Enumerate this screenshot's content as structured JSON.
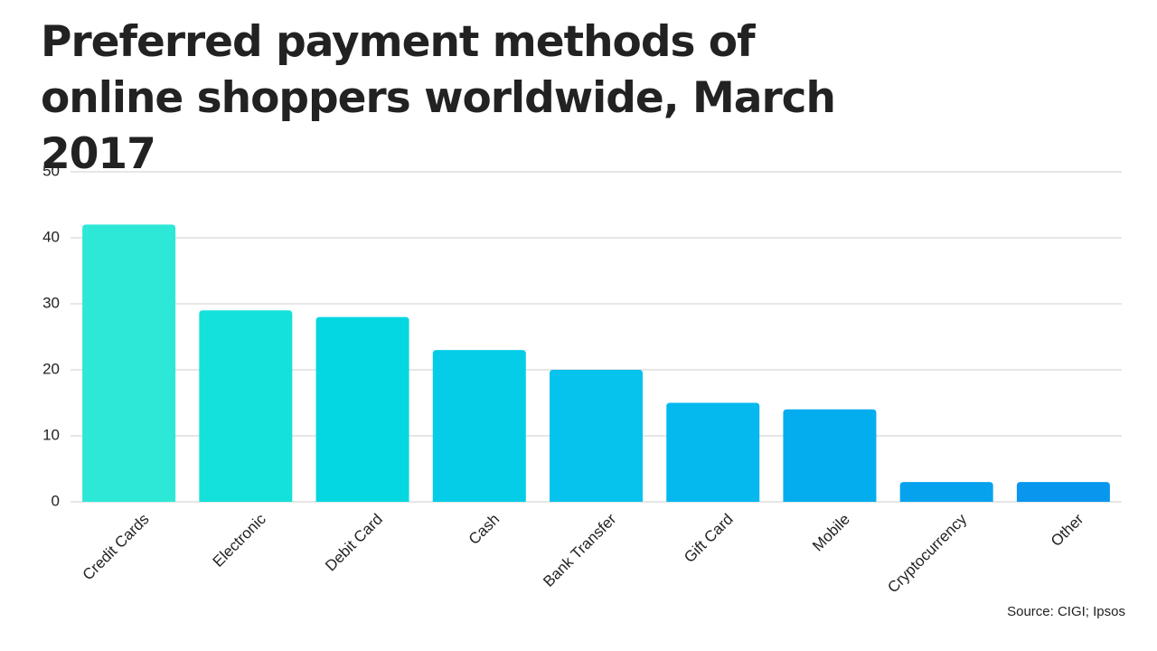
{
  "chart_data": {
    "type": "bar",
    "title": "Preferred payment methods of online shoppers worldwide, March 2017",
    "categories": [
      "Credit Cards",
      "Electronic",
      "Debit Card",
      "Cash",
      "Bank Transfer",
      "Gift Card",
      "Mobile",
      "Cryptocurrency",
      "Other"
    ],
    "values": [
      42,
      29,
      28,
      23,
      20,
      15,
      14,
      3,
      3
    ],
    "colors": [
      "#2de8d6",
      "#14e1d9",
      "#05d7e0",
      "#05cde8",
      "#05c3ec",
      "#05b8ee",
      "#04adee",
      "#07a2ee",
      "#0996ee"
    ],
    "ylim": [
      0,
      50
    ],
    "yticks": [
      0,
      10,
      20,
      30,
      40,
      50
    ],
    "grid": true,
    "source": "Source: CIGI; Ipsos"
  }
}
